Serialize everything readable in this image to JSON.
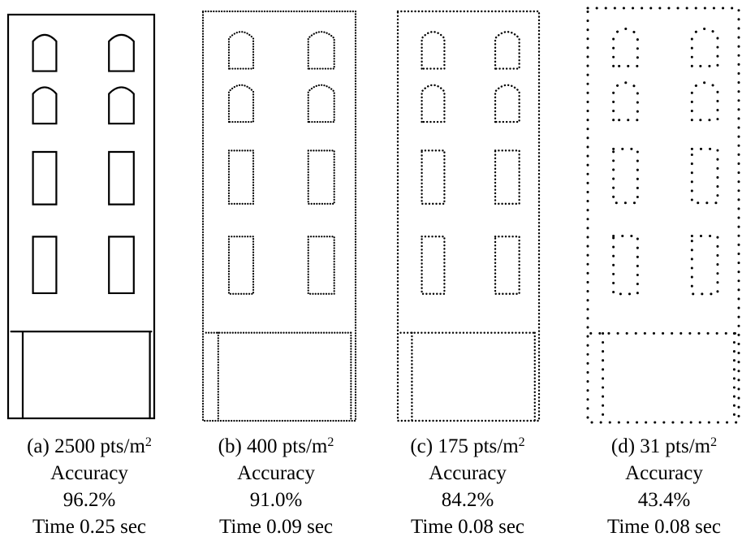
{
  "panels": [
    {
      "caption": "(a) 2500 pts/m",
      "sup": "2",
      "metric": "Accuracy",
      "accuracy": "96.2%",
      "time": "Time 0.25 sec"
    },
    {
      "caption": "(b) 400  pts/m",
      "sup": "2",
      "metric": "Accuracy",
      "accuracy": "91.0%",
      "time": "Time 0.09 sec"
    },
    {
      "caption": "(c) 175 pts/m",
      "sup": "2",
      "metric": "Accuracy",
      "accuracy": "84.2%",
      "time": "Time 0.08 sec"
    },
    {
      "caption": "(d) 31 pts/m",
      "sup": "2",
      "metric": "Accuracy",
      "accuracy": "43.4%",
      "time": "Time 0.08 sec"
    }
  ]
}
